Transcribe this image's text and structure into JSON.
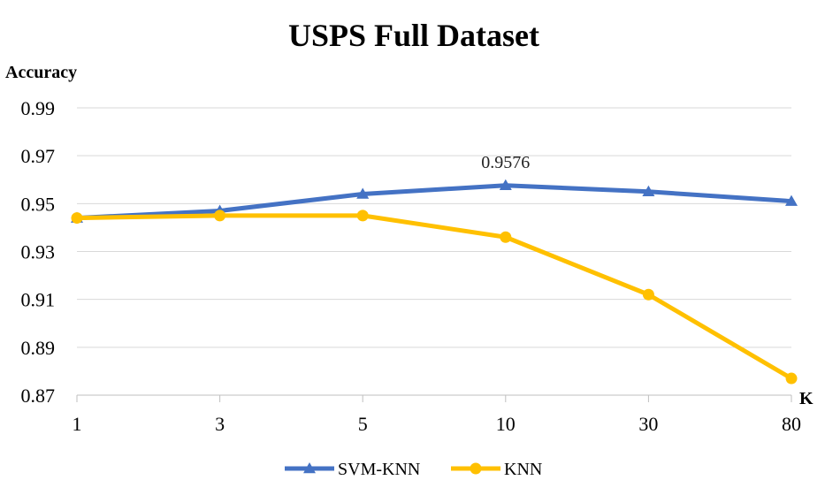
{
  "chart_data": {
    "type": "line",
    "title": "USPS Full Dataset",
    "ylabel": "Accuracy",
    "xlabel": "K",
    "categories": [
      "1",
      "3",
      "5",
      "10",
      "30",
      "80"
    ],
    "ylim": [
      0.87,
      0.99
    ],
    "yticks": [
      "0.99",
      "0.97",
      "0.95",
      "0.93",
      "0.91",
      "0.89",
      "0.87"
    ],
    "grid": "horizontal",
    "legend_position": "bottom",
    "series": [
      {
        "name": "SVM-KNN",
        "color": "#4472c4",
        "marker": "triangle",
        "values": [
          0.944,
          0.947,
          0.954,
          0.9576,
          0.955,
          0.951
        ]
      },
      {
        "name": "KNN",
        "color": "#ffc000",
        "marker": "circle",
        "values": [
          0.944,
          0.945,
          0.945,
          0.936,
          0.912,
          0.877
        ]
      }
    ],
    "annotations": [
      {
        "series": "SVM-KNN",
        "category": "10",
        "text": "0.9576"
      }
    ]
  }
}
